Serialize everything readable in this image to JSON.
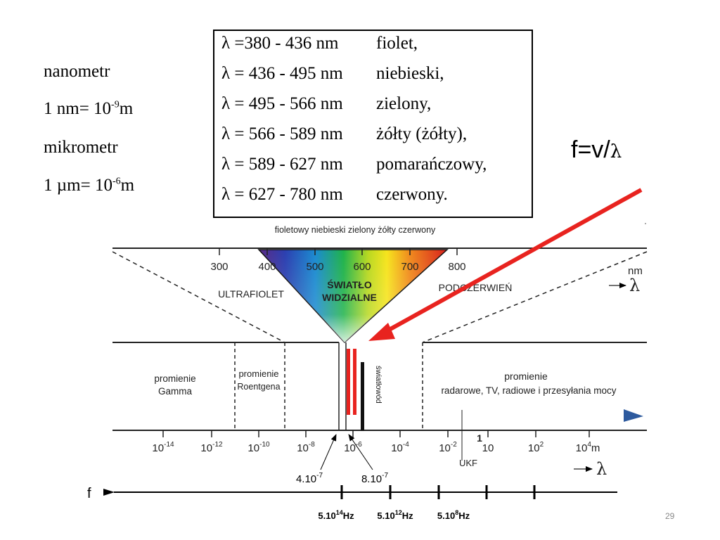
{
  "units": {
    "nanometr": "nanometr",
    "nm_def_base": "1 nm= 10",
    "nm_def_exp": "-9",
    "nm_def_unit": "m",
    "mikrometr": "mikrometr",
    "um_def_base": "1 µm= 10",
    "um_def_exp": "-6",
    "um_def_unit": "m"
  },
  "color_table": [
    {
      "range": "λ =380 - 436 nm",
      "color": "fiolet,"
    },
    {
      "range": "λ = 436 - 495 nm",
      "color": "niebieski,"
    },
    {
      "range": "λ = 495 - 566 nm",
      "color": "zielony,"
    },
    {
      "range": "λ = 566 - 589 nm",
      "color": "żółty (żółty),"
    },
    {
      "range": "λ = 589 - 627 nm",
      "color": "pomarańczowy,"
    },
    {
      "range": "λ = 627 - 780 nm",
      "color": "czerwony."
    }
  ],
  "formula": {
    "text": "f=v/",
    "symbol": "λ"
  },
  "diagram": {
    "color_names": "fioletowy niebieski zielony żółty czerwony",
    "nm_ticks": [
      "300",
      "400",
      "500",
      "600",
      "700",
      "800"
    ],
    "nm_unit": "nm",
    "lambda": "λ",
    "ultraviolet": "ULTRAFIOLET",
    "visible_line1": "ŚWIATŁO",
    "visible_line2": "WIDZIALNE",
    "infrared": "PODCZERWIEŃ",
    "gamma_line1": "promienie",
    "gamma_line2": "Gamma",
    "xray_line1": "promienie",
    "xray_line2": "Roentgena",
    "radio_line1": "promienie",
    "radio_line2": "radarowe, TV, radiowe i przesyłania mocy",
    "fiber": "światłowód",
    "m_tick_bases": [
      "10",
      "10",
      "10",
      "10",
      "10",
      "10",
      "10",
      "10",
      "10"
    ],
    "m_tick_exps": [
      "-14",
      "-12",
      "-10",
      "-8",
      "-6",
      "-4",
      "-2",
      "",
      "2"
    ],
    "m_tick_one": "1",
    "m_tick_last_base": "10",
    "m_tick_last_exp": "4",
    "m_unit": "m",
    "mark_left_base": "4.10",
    "mark_left_exp": "-7",
    "mark_right_base": "8.10",
    "mark_right_exp": "-7",
    "ukf": "UKF"
  },
  "frequency_axis": {
    "label": "f",
    "ticks": [
      {
        "base": "5.10",
        "exp": "14",
        "unit": "Hz"
      },
      {
        "base": "5.10",
        "exp": "12",
        "unit": "Hz"
      },
      {
        "base": "5.10",
        "exp": "8",
        "unit": "Hz"
      }
    ]
  },
  "colors": {
    "arrow_red": "#e8231f",
    "fiber_red": "#e8231f",
    "pointer_blue": "#2d5a9e"
  },
  "page_number": "29"
}
